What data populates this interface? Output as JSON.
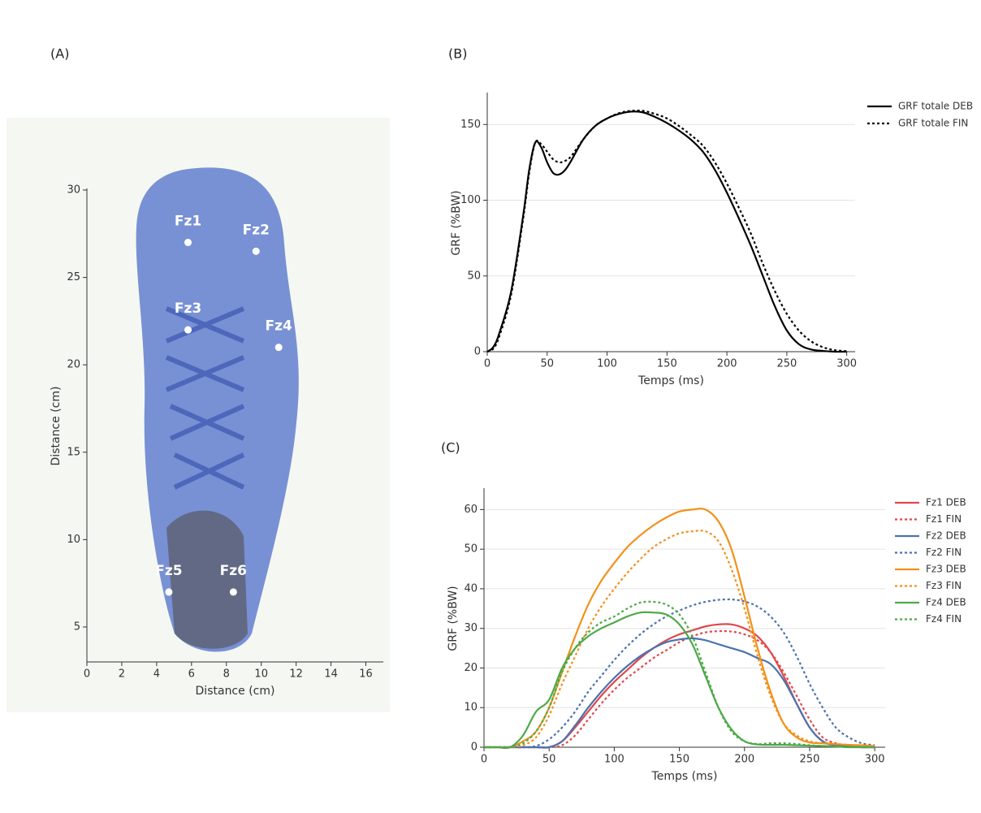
{
  "chart_data": [
    {
      "type": "scatter",
      "panel_label": "(A)",
      "x_label": "Distance (cm)",
      "y_label": "Distance (cm)",
      "labels": [
        "Fz1",
        "Fz2",
        "Fz3",
        "Fz4",
        "Fz5",
        "Fz6"
      ],
      "x": [
        5.8,
        9.7,
        5.8,
        11,
        4.7,
        8.4
      ],
      "y": [
        27,
        26.5,
        22,
        21,
        7,
        7
      ],
      "color": "#ffffff",
      "xlim": [
        0,
        17
      ],
      "ylim": [
        3,
        30
      ],
      "xticks": [
        0,
        2,
        4,
        6,
        8,
        10,
        12,
        14,
        16
      ],
      "yticks": [
        5,
        10,
        15,
        20,
        25,
        30
      ],
      "grid": false
    },
    {
      "type": "line",
      "panel_label": "(B)",
      "x_label": "Temps (ms)",
      "y_label": "GRF (%BW)",
      "x": [
        0,
        5,
        10,
        20,
        30,
        35,
        40,
        45,
        50,
        55,
        60,
        65,
        70,
        80,
        90,
        100,
        110,
        120,
        130,
        140,
        150,
        160,
        170,
        180,
        190,
        200,
        210,
        220,
        230,
        240,
        250,
        260,
        270,
        280,
        290,
        300
      ],
      "series": [
        {
          "name": "GRF totale DEB",
          "color": "#000000",
          "linestyle": "solid",
          "values": [
            0,
            3,
            12,
            40,
            90,
            120,
            138,
            135,
            125,
            118,
            117,
            120,
            126,
            140,
            149,
            154,
            157,
            158.5,
            158,
            155,
            151,
            146,
            140,
            132,
            120,
            105,
            88,
            70,
            50,
            30,
            14,
            5,
            1.5,
            0.5,
            0,
            0
          ]
        },
        {
          "name": "GRF totale FIN",
          "color": "#000000",
          "linestyle": "dotted",
          "values": [
            0,
            2,
            10,
            38,
            88,
            118,
            138,
            137,
            132,
            127,
            125,
            126,
            129,
            140,
            149,
            154,
            157.5,
            159,
            159,
            157,
            154,
            149,
            143,
            136,
            125,
            111,
            95,
            78,
            58,
            40,
            25,
            14,
            7,
            3,
            1,
            0.3
          ]
        }
      ],
      "xlim": [
        0,
        307
      ],
      "ylim": [
        0,
        170
      ],
      "xticks": [
        0,
        50,
        100,
        150,
        200,
        250,
        300
      ],
      "yticks": [
        0,
        50,
        100,
        150
      ],
      "grid": true,
      "legend": "outside-right"
    },
    {
      "type": "line",
      "panel_label": "(C)",
      "x_label": "Temps (ms)",
      "y_label": "GRF (%BW)",
      "x": [
        0,
        10,
        20,
        30,
        40,
        50,
        60,
        70,
        80,
        90,
        100,
        110,
        120,
        130,
        140,
        150,
        160,
        170,
        180,
        190,
        200,
        210,
        220,
        230,
        240,
        250,
        260,
        270,
        280,
        290,
        300
      ],
      "series": [
        {
          "name": "Fz1 DEB",
          "color": "#e0474c",
          "linestyle": "solid",
          "values": [
            0,
            0,
            0,
            0,
            0,
            0,
            1.5,
            5,
            9,
            13,
            16.5,
            19.5,
            22.5,
            25,
            27,
            28.5,
            29.5,
            30.5,
            31,
            31,
            30,
            28,
            24,
            18,
            11,
            5,
            1.5,
            0.5,
            0.2,
            0,
            0
          ]
        },
        {
          "name": "Fz1 FIN",
          "color": "#e0474c",
          "linestyle": "dotted",
          "values": [
            0,
            0,
            0,
            0,
            0,
            0,
            0.5,
            3,
            7,
            11,
            14.5,
            17.5,
            20,
            22.5,
            24.5,
            26.5,
            28,
            29,
            29.3,
            29.2,
            28.5,
            27,
            24,
            19,
            13,
            7,
            2.5,
            1,
            0.3,
            0,
            0
          ]
        },
        {
          "name": "Fz2 DEB",
          "color": "#4a72b0",
          "linestyle": "solid",
          "values": [
            0,
            0,
            0,
            0,
            0,
            0,
            1.5,
            5.5,
            10,
            14,
            17.5,
            20.5,
            23,
            25,
            26.5,
            27.2,
            27.5,
            27,
            26,
            25,
            24,
            22.5,
            21,
            17,
            11,
            5,
            1.5,
            0.5,
            0.2,
            0,
            0
          ]
        },
        {
          "name": "Fz2 FIN",
          "color": "#4a72b0",
          "linestyle": "dotted",
          "values": [
            0,
            0,
            0,
            0,
            0.3,
            2,
            5,
            9,
            14,
            18,
            22,
            25.5,
            28.5,
            31,
            33,
            34.5,
            35.8,
            36.7,
            37.2,
            37.3,
            36.8,
            35.5,
            33,
            29,
            23,
            16,
            10,
            5,
            2.5,
            1,
            0.5
          ]
        },
        {
          "name": "Fz3 DEB",
          "color": "#f39019",
          "linestyle": "solid",
          "values": [
            0,
            0,
            0,
            1.5,
            4,
            10,
            19,
            28,
            36,
            42,
            46.5,
            50.5,
            53.5,
            56,
            58,
            59.5,
            60,
            60,
            57,
            50,
            38,
            25,
            14,
            6,
            2.5,
            1.2,
            1,
            0.8,
            0.6,
            0.5,
            0.3
          ]
        },
        {
          "name": "Fz3 FIN",
          "color": "#f39019",
          "linestyle": "dotted",
          "values": [
            0,
            0,
            0,
            0.5,
            2.5,
            8,
            16,
            23,
            30,
            35.5,
            40,
            44,
            47.5,
            50.5,
            52.5,
            54,
            54.5,
            54.5,
            52,
            45,
            35,
            23,
            13,
            6,
            3,
            1.5,
            1,
            0.8,
            0.6,
            0.4,
            0.3
          ]
        },
        {
          "name": "Fz4 DEB",
          "color": "#4caa48",
          "linestyle": "solid",
          "values": [
            0,
            0,
            0,
            3,
            9,
            12,
            20,
            25,
            28,
            30,
            31.5,
            33,
            34,
            34,
            33.5,
            31,
            26,
            18,
            10,
            4.5,
            1.5,
            0.7,
            0.6,
            0.6,
            0.5,
            0.4,
            0.3,
            0.2,
            0,
            0,
            0
          ]
        },
        {
          "name": "Fz4 FIN",
          "color": "#4caa48",
          "linestyle": "dotted",
          "values": [
            0,
            0,
            0,
            1,
            4,
            10,
            19,
            25,
            29,
            31.5,
            33,
            35,
            36.5,
            36.7,
            36,
            33.5,
            28,
            19,
            10,
            4,
            1.5,
            0.8,
            1,
            1,
            0.8,
            0.5,
            0.3,
            0.2,
            0.1,
            0,
            0
          ]
        }
      ],
      "xlim": [
        0,
        308
      ],
      "ylim": [
        0,
        65
      ],
      "xticks": [
        0,
        50,
        100,
        150,
        200,
        250,
        300
      ],
      "yticks": [
        0,
        10,
        20,
        30,
        40,
        50,
        60
      ],
      "grid": true,
      "legend": "outside-right"
    }
  ]
}
